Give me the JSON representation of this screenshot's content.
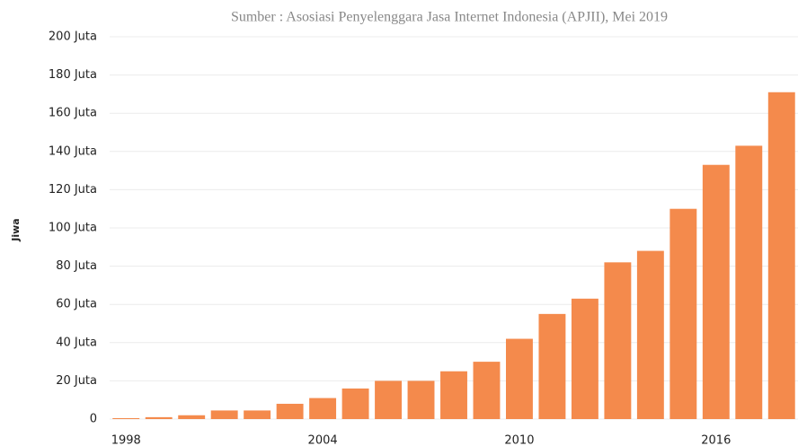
{
  "chart_data": {
    "type": "bar",
    "subtitle": "Sumber : Asosiasi Penyelenggara Jasa Internet Indonesia (APJII), Mei 2019",
    "y_label": "Jiwa",
    "categories": [
      "1998",
      null,
      null,
      null,
      null,
      null,
      "2004",
      null,
      null,
      null,
      null,
      null,
      "2010",
      null,
      null,
      null,
      null,
      null,
      "2016",
      null,
      null
    ],
    "values": [
      0.5,
      1,
      2,
      4.5,
      4.5,
      8,
      11,
      16,
      20,
      20,
      25,
      30,
      42,
      55,
      63,
      82,
      88,
      110,
      133,
      143,
      171
    ],
    "color": "#f48a4c",
    "ylim": [
      0,
      200
    ],
    "yticks": [
      0,
      {
        "value": 20,
        "label": "20 Juta"
      },
      {
        "value": 40,
        "label": "40 Juta"
      },
      {
        "value": 60,
        "label": "60 Juta"
      },
      {
        "value": 80,
        "label": "80 Juta"
      },
      {
        "value": 100,
        "label": "100 Juta"
      },
      {
        "value": 120,
        "label": "120 Juta"
      },
      {
        "value": 140,
        "label": "140 Juta"
      },
      {
        "value": 160,
        "label": "160 Juta"
      },
      {
        "value": 180,
        "label": "180 Juta"
      },
      {
        "value": 200,
        "label": "200 Juta"
      }
    ],
    "grid": true
  }
}
